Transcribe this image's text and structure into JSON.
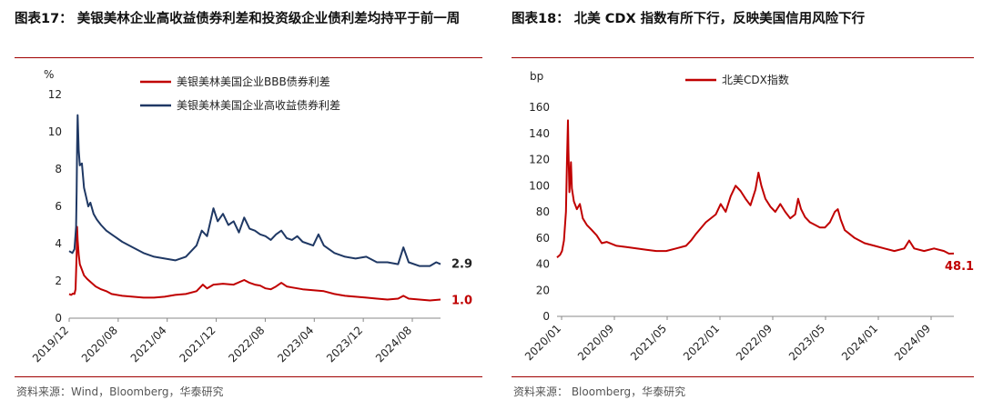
{
  "left": {
    "title": "图表17： 美银美林企业高收益债券利差和投资级企业债利差均持平于前一周",
    "source": "资料来源：Wind，Bloomberg，华泰研究",
    "chart_data": {
      "type": "line",
      "unit": "%",
      "ylim": [
        0,
        12
      ],
      "yticks": [
        0,
        2,
        4,
        6,
        8,
        10,
        12
      ],
      "xticks": [
        "2019/12",
        "2020/08",
        "2021/04",
        "2021/12",
        "2022/08",
        "2023/04",
        "2023/12",
        "2024/08"
      ],
      "legend_position": "top",
      "series": [
        {
          "name": "美银美林美国企业BBB债券利差",
          "color": "#c00000",
          "end_label": "1.0",
          "points": [
            [
              0,
              1.3
            ],
            [
              0.2,
              1.25
            ],
            [
              0.35,
              1.32
            ],
            [
              0.5,
              1.3
            ],
            [
              0.6,
              1.55
            ],
            [
              0.7,
              3.4
            ],
            [
              0.75,
              4.9
            ],
            [
              0.8,
              4.2
            ],
            [
              0.9,
              3.4
            ],
            [
              1.0,
              2.9
            ],
            [
              1.2,
              2.6
            ],
            [
              1.4,
              2.3
            ],
            [
              1.7,
              2.1
            ],
            [
              2.0,
              1.95
            ],
            [
              2.5,
              1.7
            ],
            [
              3.0,
              1.55
            ],
            [
              3.5,
              1.45
            ],
            [
              4.0,
              1.3
            ],
            [
              5.0,
              1.2
            ],
            [
              6.0,
              1.15
            ],
            [
              7.0,
              1.1
            ],
            [
              8.0,
              1.1
            ],
            [
              9.0,
              1.15
            ],
            [
              10.0,
              1.25
            ],
            [
              11.0,
              1.3
            ],
            [
              12.0,
              1.45
            ],
            [
              12.6,
              1.8
            ],
            [
              13.0,
              1.6
            ],
            [
              13.6,
              1.8
            ],
            [
              14.5,
              1.85
            ],
            [
              15.5,
              1.8
            ],
            [
              16.5,
              2.05
            ],
            [
              17.0,
              1.9
            ],
            [
              17.5,
              1.8
            ],
            [
              18.0,
              1.75
            ],
            [
              18.5,
              1.6
            ],
            [
              19.0,
              1.55
            ],
            [
              19.5,
              1.7
            ],
            [
              20.0,
              1.9
            ],
            [
              20.5,
              1.7
            ],
            [
              21.0,
              1.65
            ],
            [
              22.0,
              1.55
            ],
            [
              23.0,
              1.5
            ],
            [
              24.0,
              1.45
            ],
            [
              25.0,
              1.3
            ],
            [
              26.0,
              1.2
            ],
            [
              27.0,
              1.15
            ],
            [
              28.0,
              1.1
            ],
            [
              29.0,
              1.05
            ],
            [
              30.0,
              1.0
            ],
            [
              31.0,
              1.05
            ],
            [
              31.5,
              1.2
            ],
            [
              32.0,
              1.05
            ],
            [
              33.0,
              1.0
            ],
            [
              34.0,
              0.95
            ],
            [
              35.0,
              1.0
            ]
          ]
        },
        {
          "name": "美银美林美国企业高收益债券利差",
          "color": "#1f3864",
          "end_label": "2.9",
          "points": [
            [
              0,
              3.6
            ],
            [
              0.3,
              3.5
            ],
            [
              0.5,
              3.7
            ],
            [
              0.65,
              4.9
            ],
            [
              0.7,
              6.8
            ],
            [
              0.75,
              9.2
            ],
            [
              0.8,
              10.9
            ],
            [
              0.9,
              9.0
            ],
            [
              1.0,
              8.2
            ],
            [
              1.2,
              8.3
            ],
            [
              1.4,
              7.0
            ],
            [
              1.6,
              6.5
            ],
            [
              1.8,
              6.0
            ],
            [
              2.0,
              6.2
            ],
            [
              2.3,
              5.6
            ],
            [
              2.6,
              5.3
            ],
            [
              3.0,
              5.0
            ],
            [
              3.5,
              4.7
            ],
            [
              4.0,
              4.5
            ],
            [
              5.0,
              4.1
            ],
            [
              6.0,
              3.8
            ],
            [
              7.0,
              3.5
            ],
            [
              8.0,
              3.3
            ],
            [
              9.0,
              3.2
            ],
            [
              10.0,
              3.1
            ],
            [
              11.0,
              3.3
            ],
            [
              12.0,
              3.9
            ],
            [
              12.5,
              4.7
            ],
            [
              13.0,
              4.4
            ],
            [
              13.6,
              5.9
            ],
            [
              14.0,
              5.2
            ],
            [
              14.5,
              5.6
            ],
            [
              15.0,
              5.0
            ],
            [
              15.5,
              5.2
            ],
            [
              16.0,
              4.6
            ],
            [
              16.5,
              5.4
            ],
            [
              17.0,
              4.8
            ],
            [
              17.5,
              4.7
            ],
            [
              18.0,
              4.5
            ],
            [
              18.5,
              4.4
            ],
            [
              19.0,
              4.2
            ],
            [
              19.5,
              4.5
            ],
            [
              20.0,
              4.7
            ],
            [
              20.5,
              4.3
            ],
            [
              21.0,
              4.2
            ],
            [
              21.5,
              4.4
            ],
            [
              22.0,
              4.1
            ],
            [
              23.0,
              3.9
            ],
            [
              23.5,
              4.5
            ],
            [
              24.0,
              3.9
            ],
            [
              25.0,
              3.5
            ],
            [
              26.0,
              3.3
            ],
            [
              27.0,
              3.2
            ],
            [
              28.0,
              3.3
            ],
            [
              29.0,
              3.0
            ],
            [
              30.0,
              3.0
            ],
            [
              31.0,
              2.9
            ],
            [
              31.5,
              3.8
            ],
            [
              32.0,
              3.0
            ],
            [
              33.0,
              2.8
            ],
            [
              34.0,
              2.8
            ],
            [
              34.6,
              3.0
            ],
            [
              35.0,
              2.9
            ]
          ]
        }
      ],
      "x_max": 35
    }
  },
  "right": {
    "title": "图表18： 北美 CDX 指数有所下行，反映美国信用风险下行",
    "source": "资料来源： Bloomberg，华泰研究",
    "chart_data": {
      "type": "line",
      "unit": "bp",
      "ylim": [
        0,
        160
      ],
      "yticks": [
        0,
        20,
        40,
        60,
        80,
        100,
        120,
        140,
        160
      ],
      "xticks": [
        "2020/01",
        "2020/09",
        "2021/05",
        "2022/01",
        "2022/09",
        "2023/05",
        "2024/01",
        "2024/09"
      ],
      "legend_position": "top",
      "series": [
        {
          "name": "北美CDX指数",
          "color": "#c00000",
          "end_label": "48.1",
          "points": [
            [
              0,
              45
            ],
            [
              0.3,
              47
            ],
            [
              0.5,
              50
            ],
            [
              0.7,
              58
            ],
            [
              0.9,
              80
            ],
            [
              1.0,
              118
            ],
            [
              1.1,
              150
            ],
            [
              1.15,
              128
            ],
            [
              1.25,
              95
            ],
            [
              1.4,
              118
            ],
            [
              1.5,
              98
            ],
            [
              1.7,
              88
            ],
            [
              2.0,
              82
            ],
            [
              2.3,
              86
            ],
            [
              2.6,
              75
            ],
            [
              3.0,
              70
            ],
            [
              3.5,
              66
            ],
            [
              4.0,
              62
            ],
            [
              4.5,
              56
            ],
            [
              5.0,
              57
            ],
            [
              6.0,
              54
            ],
            [
              7.0,
              53
            ],
            [
              8.0,
              52
            ],
            [
              9.0,
              51
            ],
            [
              10.0,
              50
            ],
            [
              11.0,
              50
            ],
            [
              12.0,
              52
            ],
            [
              13.0,
              54
            ],
            [
              13.5,
              58
            ],
            [
              14.0,
              63
            ],
            [
              15.0,
              72
            ],
            [
              16.0,
              78
            ],
            [
              16.5,
              86
            ],
            [
              17.0,
              80
            ],
            [
              17.5,
              92
            ],
            [
              18.0,
              100
            ],
            [
              18.5,
              96
            ],
            [
              19.0,
              90
            ],
            [
              19.5,
              85
            ],
            [
              20.0,
              97
            ],
            [
              20.3,
              110
            ],
            [
              20.6,
              100
            ],
            [
              21.0,
              90
            ],
            [
              21.5,
              84
            ],
            [
              22.0,
              80
            ],
            [
              22.5,
              86
            ],
            [
              23.0,
              80
            ],
            [
              23.5,
              75
            ],
            [
              24.0,
              78
            ],
            [
              24.3,
              90
            ],
            [
              24.6,
              82
            ],
            [
              25.0,
              76
            ],
            [
              25.5,
              72
            ],
            [
              26.0,
              70
            ],
            [
              26.5,
              68
            ],
            [
              27.0,
              68
            ],
            [
              27.5,
              72
            ],
            [
              28.0,
              80
            ],
            [
              28.3,
              82
            ],
            [
              28.6,
              74
            ],
            [
              29.0,
              66
            ],
            [
              30.0,
              60
            ],
            [
              31.0,
              56
            ],
            [
              32.0,
              54
            ],
            [
              33.0,
              52
            ],
            [
              34.0,
              50
            ],
            [
              35.0,
              52
            ],
            [
              35.5,
              58
            ],
            [
              36.0,
              52
            ],
            [
              37.0,
              50
            ],
            [
              38.0,
              52
            ],
            [
              39.0,
              50
            ],
            [
              39.5,
              48
            ],
            [
              40.0,
              48.1
            ]
          ]
        }
      ],
      "x_max": 40
    }
  }
}
